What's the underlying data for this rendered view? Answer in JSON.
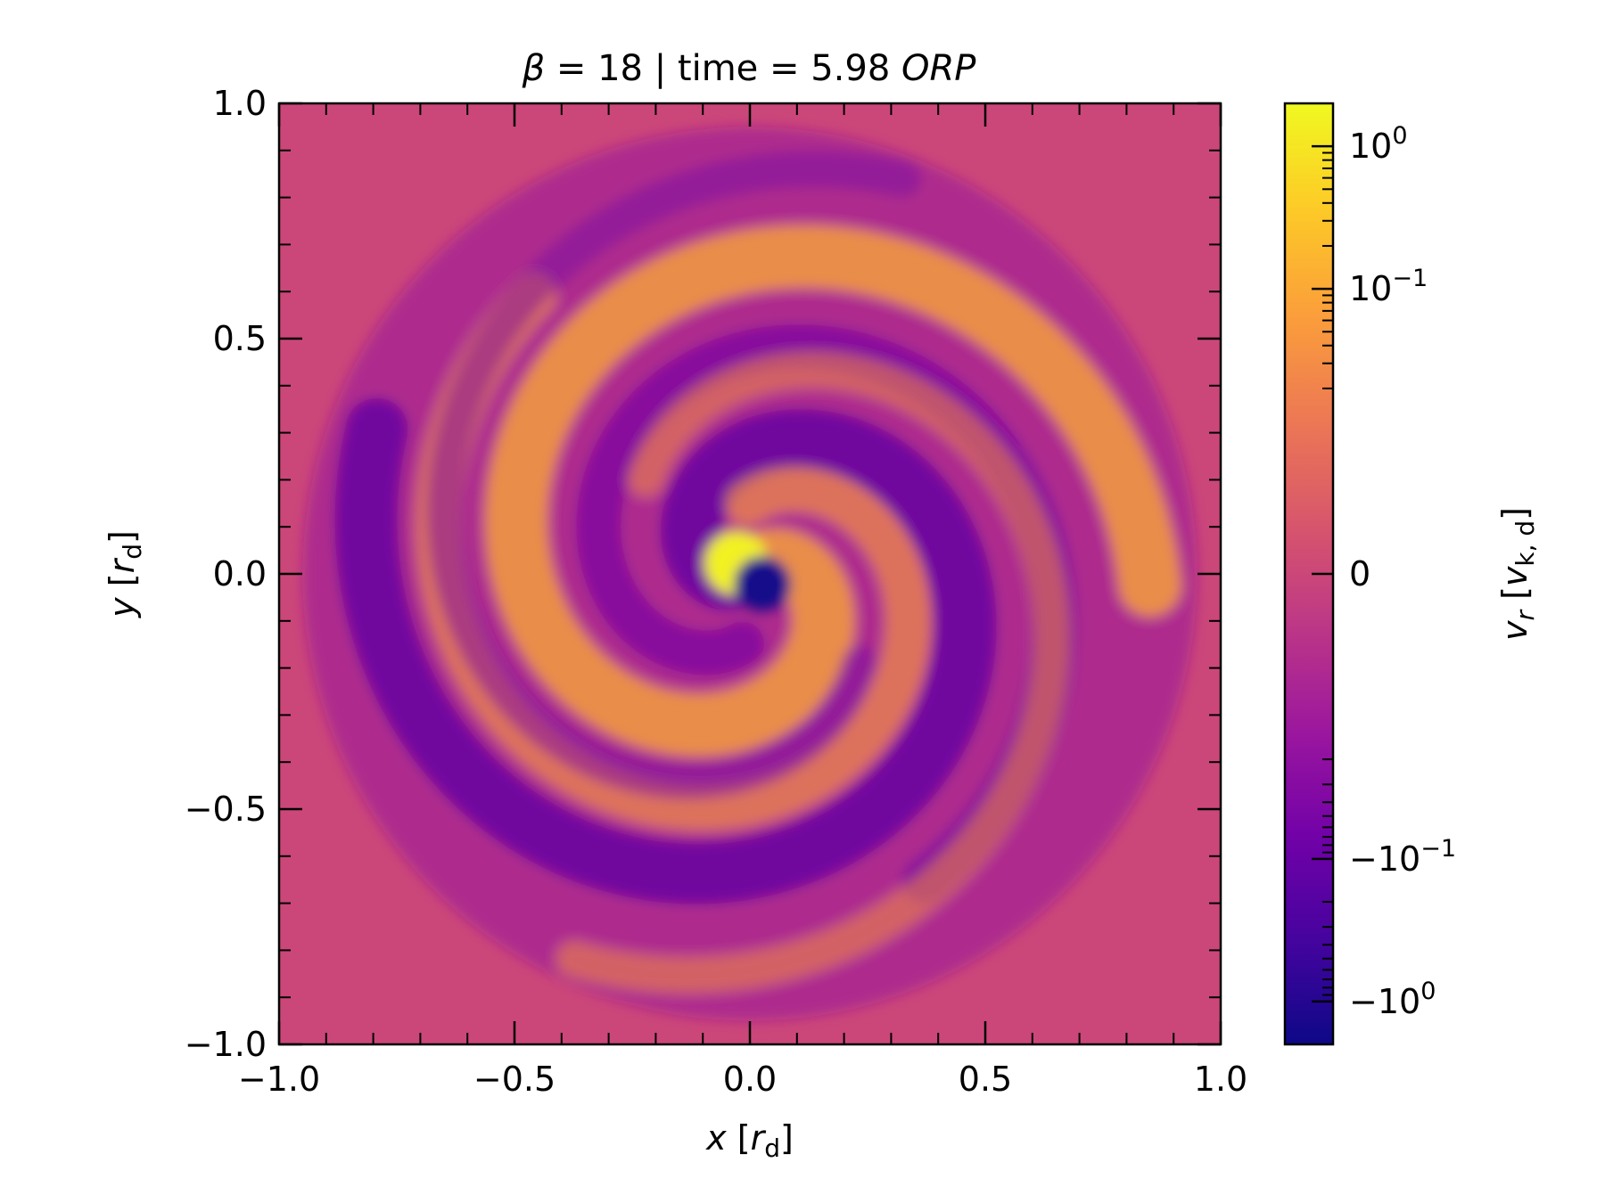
{
  "chart_data": {
    "type": "heatmap",
    "title": {
      "beta_symbol": "β",
      "beta_value": "18",
      "separator": "|",
      "time_text": "time = 5.98",
      "time_unit": "ORP"
    },
    "xlabel": {
      "var": "x",
      "unit": "r",
      "unit_sub": "d"
    },
    "ylabel": {
      "var": "y",
      "unit": "r",
      "unit_sub": "d"
    },
    "xlim": [
      -1.0,
      1.0
    ],
    "ylim": [
      -1.0,
      1.0
    ],
    "xticks": [
      {
        "value": -1.0,
        "label": "−1.0"
      },
      {
        "value": -0.5,
        "label": "−0.5"
      },
      {
        "value": 0.0,
        "label": "0.0"
      },
      {
        "value": 0.5,
        "label": "0.5"
      },
      {
        "value": 1.0,
        "label": "1.0"
      }
    ],
    "yticks": [
      {
        "value": -1.0,
        "label": "−1.0"
      },
      {
        "value": -0.5,
        "label": "−0.5"
      },
      {
        "value": 0.0,
        "label": "0.0"
      },
      {
        "value": 0.5,
        "label": "0.5"
      },
      {
        "value": 1.0,
        "label": "1.0"
      }
    ],
    "minor_tick_step": 0.1,
    "colorbar": {
      "label": {
        "var": "v",
        "var_sub": "r",
        "unit": "v",
        "unit_sub": "k, d"
      },
      "scale": "symlog",
      "linthresh": 0.01,
      "range": [
        -2.0,
        2.0
      ],
      "colormap": "plasma",
      "ticks": [
        {
          "value": 1.0,
          "base": "10",
          "exp": "0",
          "sign": ""
        },
        {
          "value": 0.1,
          "base": "10",
          "exp": "−1",
          "sign": ""
        },
        {
          "value": 0.0,
          "plain": "0"
        },
        {
          "value": -0.1,
          "base": "10",
          "exp": "−1",
          "sign": "−"
        },
        {
          "value": -1.0,
          "base": "10",
          "exp": "0",
          "sign": "−"
        }
      ]
    },
    "colors": {
      "plasma": [
        "#0d0887",
        "#46039f",
        "#7201a8",
        "#9c179e",
        "#bd3786",
        "#d8576b",
        "#ed7953",
        "#fb9f3a",
        "#fdca26",
        "#f0f921"
      ],
      "background_value": 0.0
    }
  }
}
